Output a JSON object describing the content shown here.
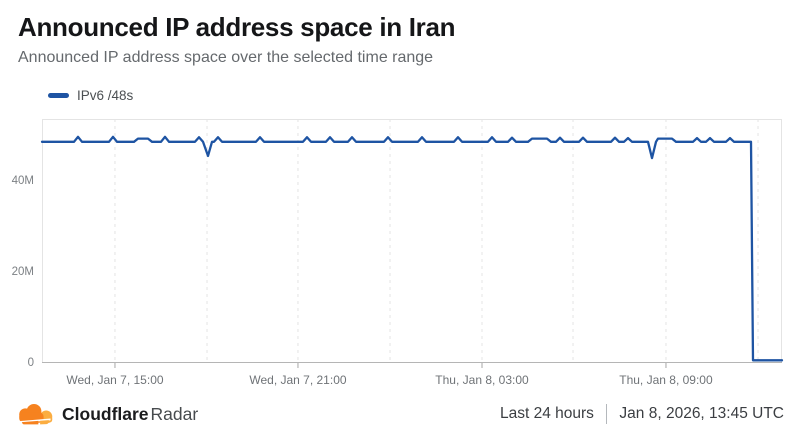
{
  "header": {
    "title": "Announced IP address space in Iran",
    "subtitle": "Announced IP address space over the selected time range"
  },
  "legend": {
    "items": [
      {
        "label": "IPv6 /48s",
        "color": "#1e54a3"
      }
    ]
  },
  "chart_data": {
    "type": "line",
    "title": "Announced IP address space in Iran",
    "y_unit": "millions of /48s",
    "ylim": [
      0,
      53.6
    ],
    "grid": "vertical-dashed",
    "legend_position": "top-left",
    "yticks": [
      {
        "value": 0,
        "label": "0"
      },
      {
        "value": 20,
        "label": "20M"
      },
      {
        "value": 40,
        "label": "40M"
      }
    ],
    "xticks": [
      {
        "x": 0.0986,
        "label": "Wed, Jan 7, 15:00"
      },
      {
        "x": 0.3459,
        "label": "Wed, Jan 7, 21:00"
      },
      {
        "x": 0.5946,
        "label": "Thu, Jan 8, 03:00"
      },
      {
        "x": 0.8432,
        "label": "Thu, Jan 8, 09:00"
      }
    ],
    "gridlines_x": [
      0.0986,
      0.223,
      0.3459,
      0.4703,
      0.5946,
      0.7176,
      0.8432,
      0.9676
    ],
    "series": [
      {
        "name": "IPv6 /48s",
        "color": "#1e54a3",
        "points": [
          [
            0.0,
            48.6
          ],
          [
            0.0432,
            48.6
          ],
          [
            0.0486,
            49.7
          ],
          [
            0.0541,
            48.6
          ],
          [
            0.0905,
            48.6
          ],
          [
            0.0959,
            49.7
          ],
          [
            0.1014,
            48.6
          ],
          [
            0.1243,
            48.6
          ],
          [
            0.1297,
            49.3
          ],
          [
            0.1432,
            49.3
          ],
          [
            0.1486,
            48.6
          ],
          [
            0.1608,
            48.6
          ],
          [
            0.1662,
            49.7
          ],
          [
            0.1716,
            48.6
          ],
          [
            0.2068,
            48.6
          ],
          [
            0.2122,
            49.6
          ],
          [
            0.2176,
            48.6
          ],
          [
            0.2243,
            45.5
          ],
          [
            0.2297,
            48.6
          ],
          [
            0.2324,
            48.6
          ],
          [
            0.2378,
            49.6
          ],
          [
            0.2432,
            48.6
          ],
          [
            0.2892,
            48.6
          ],
          [
            0.2946,
            49.6
          ],
          [
            0.3,
            48.6
          ],
          [
            0.3527,
            48.6
          ],
          [
            0.3581,
            49.6
          ],
          [
            0.3635,
            48.6
          ],
          [
            0.3838,
            48.6
          ],
          [
            0.3892,
            49.6
          ],
          [
            0.3946,
            48.6
          ],
          [
            0.4135,
            48.6
          ],
          [
            0.4189,
            49.6
          ],
          [
            0.4243,
            48.6
          ],
          [
            0.4622,
            48.6
          ],
          [
            0.4676,
            49.6
          ],
          [
            0.473,
            48.6
          ],
          [
            0.5081,
            48.6
          ],
          [
            0.5135,
            49.6
          ],
          [
            0.5189,
            48.6
          ],
          [
            0.5568,
            48.6
          ],
          [
            0.5622,
            49.6
          ],
          [
            0.5676,
            48.6
          ],
          [
            0.6027,
            48.6
          ],
          [
            0.6081,
            49.6
          ],
          [
            0.6135,
            48.6
          ],
          [
            0.6297,
            48.6
          ],
          [
            0.6351,
            49.5
          ],
          [
            0.6405,
            48.6
          ],
          [
            0.6568,
            48.6
          ],
          [
            0.6622,
            49.3
          ],
          [
            0.6824,
            49.3
          ],
          [
            0.6878,
            48.6
          ],
          [
            0.6946,
            48.6
          ],
          [
            0.7,
            49.5
          ],
          [
            0.7054,
            48.6
          ],
          [
            0.7257,
            48.6
          ],
          [
            0.7311,
            49.5
          ],
          [
            0.7365,
            48.6
          ],
          [
            0.7689,
            48.6
          ],
          [
            0.7743,
            49.5
          ],
          [
            0.7797,
            48.6
          ],
          [
            0.7865,
            48.6
          ],
          [
            0.7919,
            49.4
          ],
          [
            0.7973,
            48.6
          ],
          [
            0.8189,
            48.6
          ],
          [
            0.8243,
            45.0
          ],
          [
            0.8297,
            48.6
          ],
          [
            0.8324,
            49.3
          ],
          [
            0.8514,
            49.3
          ],
          [
            0.8568,
            48.6
          ],
          [
            0.8797,
            48.6
          ],
          [
            0.8851,
            49.4
          ],
          [
            0.8905,
            48.6
          ],
          [
            0.8973,
            48.6
          ],
          [
            0.9027,
            49.4
          ],
          [
            0.9081,
            48.6
          ],
          [
            0.9243,
            48.6
          ],
          [
            0.9297,
            49.4
          ],
          [
            0.9351,
            48.6
          ],
          [
            0.9581,
            48.6
          ],
          [
            0.9608,
            0.6
          ],
          [
            1.0,
            0.6
          ]
        ]
      }
    ]
  },
  "colors": {
    "accent_blue": "#1e54a3",
    "grid": "#e4e4e4",
    "axis": "#b5b5b5",
    "cloudflare_orange": "#F6821F",
    "cloudflare_orange_light": "#FBAD41"
  },
  "footer": {
    "brand_bold": "Cloudflare",
    "brand_regular": "Radar",
    "time_range": "Last 24 hours",
    "timestamp": "Jan 8, 2026, 13:45 UTC"
  }
}
